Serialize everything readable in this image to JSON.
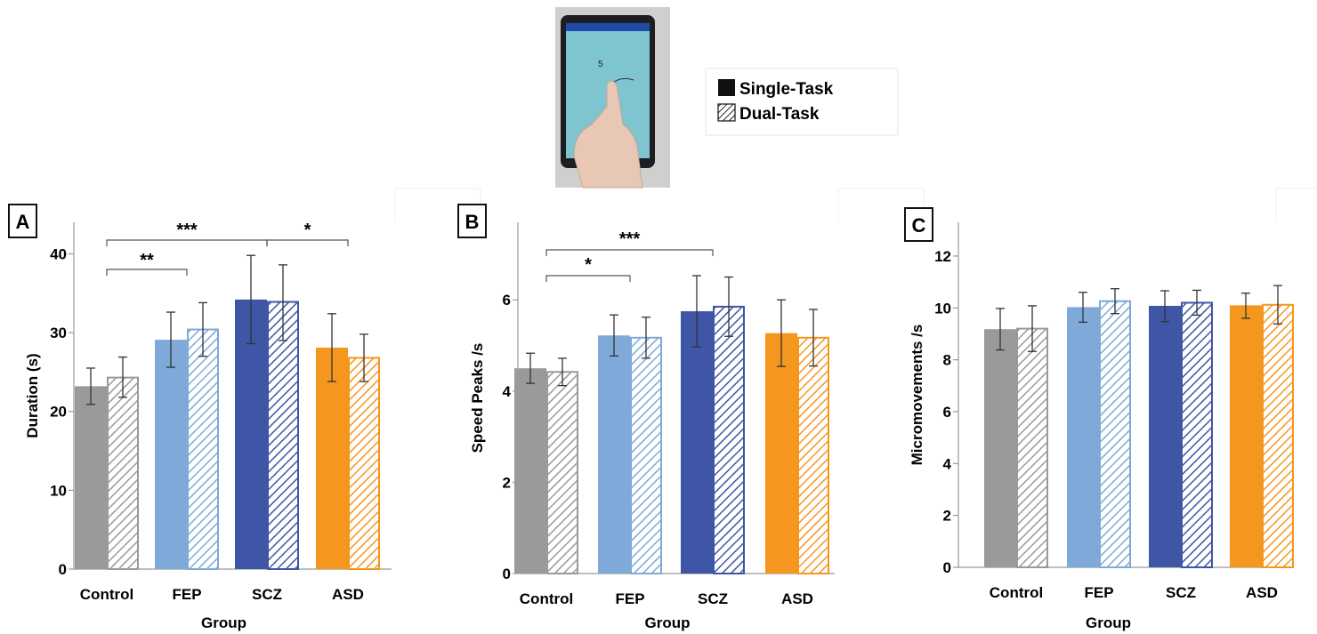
{
  "legend": {
    "single": "Single-Task",
    "dual": "Dual-Task"
  },
  "photo": {
    "screen_digit": "5"
  },
  "colors": {
    "Control": "#9a9a9a",
    "FEP": "#7ea9d8",
    "SCZ": "#3f56a6",
    "ASD": "#f5961f",
    "tablet_screen": "#7fc5cf"
  },
  "chart_data": [
    {
      "panel": "A",
      "type": "bar",
      "categories": [
        "Control",
        "FEP",
        "SCZ",
        "ASD"
      ],
      "xlabel": "Group",
      "ylabel": "Duration (s)",
      "ylim": [
        0,
        44
      ],
      "yticks": [
        0,
        10,
        20,
        30,
        40
      ],
      "series": [
        {
          "name": "Single-Task",
          "values": [
            23.2,
            29.1,
            34.2,
            28.1
          ],
          "err_low": [
            20.9,
            25.6,
            28.6,
            23.8
          ],
          "err_high": [
            25.5,
            32.6,
            39.8,
            32.4
          ]
        },
        {
          "name": "Dual-Task",
          "values": [
            24.3,
            30.4,
            33.9,
            26.8
          ],
          "err_low": [
            21.8,
            27.0,
            29.0,
            23.8
          ],
          "err_high": [
            26.9,
            33.8,
            38.6,
            29.8
          ]
        }
      ],
      "significance": [
        {
          "from": "Control",
          "to": "SCZ",
          "label": "***"
        },
        {
          "from": "SCZ",
          "to": "ASD",
          "label": "*"
        },
        {
          "from": "Control",
          "to": "FEP",
          "label": "**"
        }
      ]
    },
    {
      "panel": "B",
      "type": "bar",
      "categories": [
        "Control",
        "FEP",
        "SCZ",
        "ASD"
      ],
      "xlabel": "Group",
      "ylabel": "Speed Peaks /s",
      "ylim": [
        0,
        7.7
      ],
      "yticks": [
        0,
        2,
        4,
        6
      ],
      "series": [
        {
          "name": "Single-Task",
          "values": [
            4.5,
            5.22,
            5.75,
            5.27
          ],
          "err_low": [
            4.17,
            4.77,
            4.97,
            4.54
          ],
          "err_high": [
            4.83,
            5.67,
            6.53,
            6.0
          ]
        },
        {
          "name": "Dual-Task",
          "values": [
            4.42,
            5.17,
            5.85,
            5.17
          ],
          "err_low": [
            4.12,
            4.72,
            5.2,
            4.55
          ],
          "err_high": [
            4.72,
            5.62,
            6.5,
            5.79
          ]
        }
      ],
      "significance": [
        {
          "from": "Control",
          "to": "SCZ",
          "label": "***"
        },
        {
          "from": "Control",
          "to": "FEP",
          "label": "*"
        }
      ]
    },
    {
      "panel": "C",
      "type": "bar",
      "categories": [
        "Control",
        "FEP",
        "SCZ",
        "ASD"
      ],
      "xlabel": "Group",
      "ylabel": "Micromovements /s",
      "ylim": [
        0,
        13.3
      ],
      "yticks": [
        0,
        2,
        4,
        6,
        8,
        10,
        12
      ],
      "series": [
        {
          "name": "Single-Task",
          "values": [
            9.18,
            10.03,
            10.08,
            10.1
          ],
          "err_low": [
            8.38,
            9.45,
            9.47,
            9.6
          ],
          "err_high": [
            9.98,
            10.6,
            10.66,
            10.57
          ]
        },
        {
          "name": "Dual-Task",
          "values": [
            9.2,
            10.26,
            10.2,
            10.12
          ],
          "err_low": [
            8.32,
            9.78,
            9.72,
            9.38
          ],
          "err_high": [
            10.08,
            10.74,
            10.68,
            10.86
          ]
        }
      ],
      "significance": []
    }
  ]
}
